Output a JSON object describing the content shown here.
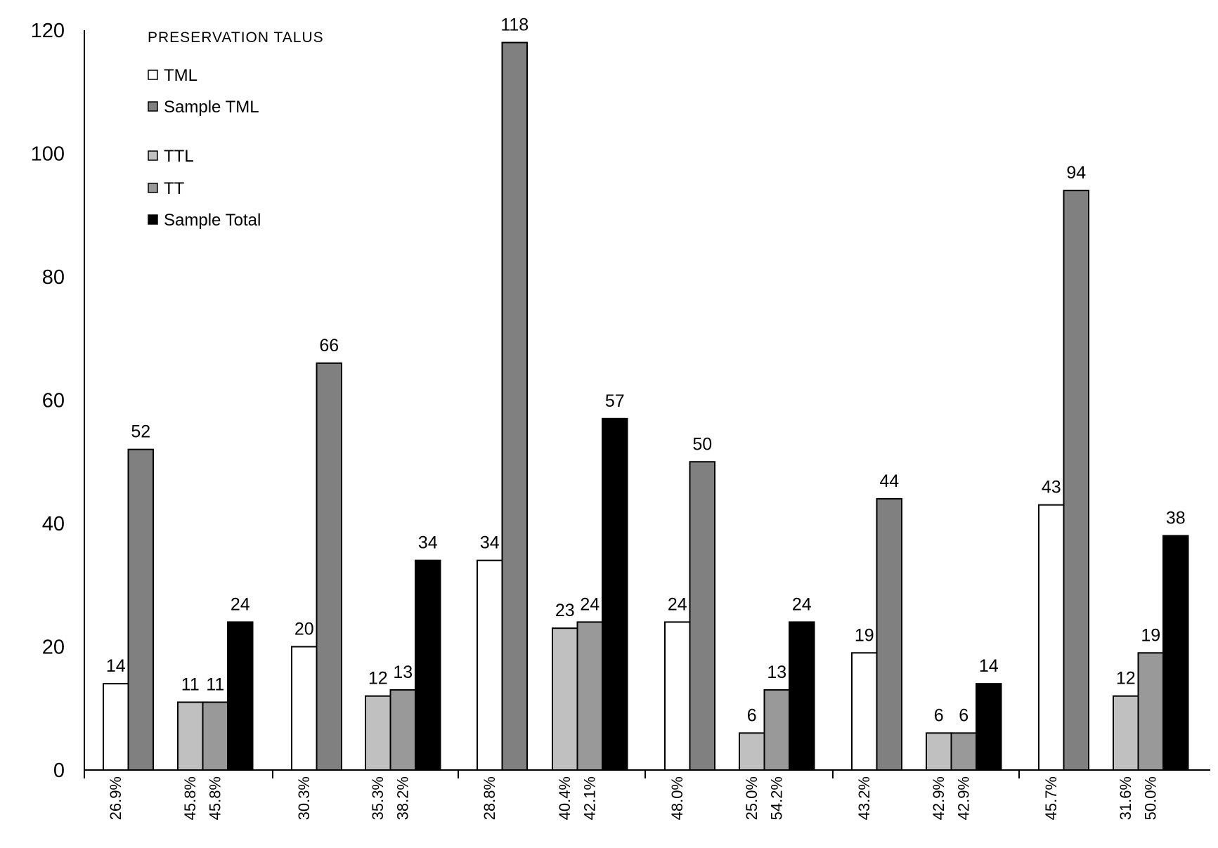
{
  "chart_data": {
    "type": "bar",
    "ylim": [
      0,
      120
    ],
    "y_ticks": [
      "0",
      "20",
      "40",
      "60",
      "80",
      "100",
      "120"
    ],
    "grid": false,
    "legend": {
      "title": "PRESERVATION TALUS",
      "placement": "top-left",
      "items": [
        {
          "name": "TML",
          "color": "#ffffff"
        },
        {
          "name": "Sample TML",
          "color": "#808080"
        },
        {
          "name": "TTL",
          "color": "#c0c0c0"
        },
        {
          "name": "TT",
          "color": "#999999"
        },
        {
          "name": "Sample Total",
          "color": "#000000"
        }
      ]
    },
    "groups": [
      {
        "pattern": "tml",
        "bars": [
          {
            "series": "TML",
            "value": 14,
            "label": "14",
            "pct": "26.9%"
          },
          {
            "series": "Sample TML",
            "value": 52,
            "label": "52"
          }
        ]
      },
      {
        "pattern": "tt",
        "bars": [
          {
            "series": "TTL",
            "value": 11,
            "label": "11",
            "pct": "45.8%"
          },
          {
            "series": "TT",
            "value": 11,
            "label": "11",
            "pct": "45.8%"
          },
          {
            "series": "Sample Total",
            "value": 24,
            "label": "24"
          }
        ]
      },
      {
        "pattern": "tml",
        "bars": [
          {
            "series": "TML",
            "value": 20,
            "label": "20",
            "pct": "30.3%"
          },
          {
            "series": "Sample TML",
            "value": 66,
            "label": "66"
          }
        ]
      },
      {
        "pattern": "tt",
        "bars": [
          {
            "series": "TTL",
            "value": 12,
            "label": "12",
            "pct": "35.3%"
          },
          {
            "series": "TT",
            "value": 13,
            "label": "13",
            "pct": "38.2%"
          },
          {
            "series": "Sample Total",
            "value": 34,
            "label": "34"
          }
        ]
      },
      {
        "pattern": "tml",
        "bars": [
          {
            "series": "TML",
            "value": 34,
            "label": "34",
            "pct": "28.8%"
          },
          {
            "series": "Sample TML",
            "value": 118,
            "label": "118"
          }
        ]
      },
      {
        "pattern": "tt",
        "bars": [
          {
            "series": "TTL",
            "value": 23,
            "label": "23",
            "pct": "40.4%"
          },
          {
            "series": "TT",
            "value": 24,
            "label": "24",
            "pct": "42.1%"
          },
          {
            "series": "Sample Total",
            "value": 57,
            "label": "57"
          }
        ]
      },
      {
        "pattern": "tml",
        "bars": [
          {
            "series": "TML",
            "value": 24,
            "label": "24",
            "pct": "48.0%"
          },
          {
            "series": "Sample TML",
            "value": 50,
            "label": "50"
          }
        ]
      },
      {
        "pattern": "tt",
        "bars": [
          {
            "series": "TTL",
            "value": 6,
            "label": "6",
            "pct": "25.0%"
          },
          {
            "series": "TT",
            "value": 13,
            "label": "13",
            "pct": "54.2%"
          },
          {
            "series": "Sample Total",
            "value": 24,
            "label": "24"
          }
        ]
      },
      {
        "pattern": "tml",
        "bars": [
          {
            "series": "TML",
            "value": 19,
            "label": "19",
            "pct": "43.2%"
          },
          {
            "series": "Sample TML",
            "value": 44,
            "label": "44"
          }
        ]
      },
      {
        "pattern": "tt",
        "bars": [
          {
            "series": "TTL",
            "value": 6,
            "label": "6",
            "pct": "42.9%"
          },
          {
            "series": "TT",
            "value": 6,
            "label": "6",
            "pct": "42.9%"
          },
          {
            "series": "Sample Total",
            "value": 14,
            "label": "14"
          }
        ]
      },
      {
        "pattern": "tml",
        "bars": [
          {
            "series": "TML",
            "value": 43,
            "label": "43",
            "pct": "45.7%"
          },
          {
            "series": "Sample TML",
            "value": 94,
            "label": "94"
          }
        ]
      },
      {
        "pattern": "tt",
        "bars": [
          {
            "series": "TTL",
            "value": 12,
            "label": "12",
            "pct": "31.6%"
          },
          {
            "series": "TT",
            "value": 19,
            "label": "19",
            "pct": "50.0%"
          },
          {
            "series": "Sample Total",
            "value": 38,
            "label": "38"
          }
        ]
      }
    ]
  }
}
